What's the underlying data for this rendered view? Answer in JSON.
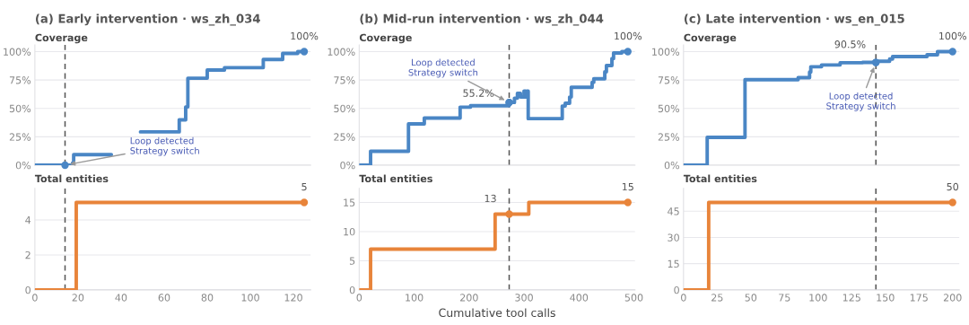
{
  "chart_data": [
    {
      "type": "step",
      "title": "(a) Early intervention · ws_zh_034",
      "subtitle": "Coverage",
      "x": [
        0,
        14,
        17.5,
        18,
        35.5,
        49,
        67,
        70,
        71,
        80,
        88,
        106,
        115,
        122,
        125
      ],
      "series": [
        {
          "color": "#4a86c5",
          "values": [
            0,
            0,
            2,
            9.3,
            null,
            29.3,
            39.9,
            51.3,
            76.6,
            83.8,
            85.9,
            93.1,
            98.4,
            100,
            100
          ]
        }
      ],
      "xlim": [
        0,
        128
      ],
      "ylim": [
        0,
        106
      ],
      "yticks": [
        {
          "value": 0,
          "label": "0%"
        },
        {
          "value": 25,
          "label": "25%"
        },
        {
          "value": 50,
          "label": "50%"
        },
        {
          "value": 75,
          "label": "75%"
        },
        {
          "value": 100,
          "label": "100%"
        }
      ],
      "tick_labels": "y",
      "grid": "y",
      "ref_lines": [
        {
          "axis": "x",
          "value": 14,
          "color": "#555555",
          "line_style": "dashed"
        }
      ],
      "annotations": [
        {
          "text": "100%",
          "x": 125,
          "y": 100
        },
        {
          "text": "Loop detected\nStrategy switch",
          "x": 14,
          "y": 0
        }
      ]
    },
    {
      "type": "step",
      "title": "(b) Mid-run intervention · ws_zh_044",
      "subtitle": "Coverage",
      "x": [
        0,
        20.7,
        89.7,
        118.5,
        183.7,
        202.7,
        273,
        282.6,
        288,
        293.5,
        300,
        303,
        305,
        307.6,
        369.6,
        375,
        383,
        386,
        424,
        427,
        447,
        450,
        460,
        463,
        478,
        489
      ],
      "series": [
        {
          "color": "#4a86c5",
          "values": [
            0,
            12.2,
            36.4,
            41.5,
            51.1,
            52.4,
            55.2,
            59.0,
            63.3,
            60.0,
            65.2,
            60.0,
            65.2,
            41.0,
            52.1,
            54.5,
            60.0,
            68.6,
            73.0,
            76.1,
            82.2,
            87.8,
            93.9,
            98.9,
            100,
            100
          ]
        }
      ],
      "xlim": [
        0,
        502
      ],
      "ylim": [
        0,
        106
      ],
      "yticks": [
        {
          "value": 0,
          "label": "0%"
        },
        {
          "value": 25,
          "label": "25%"
        },
        {
          "value": 50,
          "label": "50%"
        },
        {
          "value": 75,
          "label": "75%"
        },
        {
          "value": 100,
          "label": "100%"
        }
      ],
      "tick_labels": "y",
      "grid": "y",
      "ref_lines": [
        {
          "axis": "x",
          "value": 273,
          "color": "#555555",
          "line_style": "dashed"
        }
      ],
      "annotations": [
        {
          "text": "100%",
          "x": 489,
          "y": 100
        },
        {
          "text": "55.2%",
          "x": 273,
          "y": 55.2
        },
        {
          "text": "Loop detected\nStrategy switch",
          "x": 273,
          "y": 55.2
        }
      ]
    },
    {
      "type": "step",
      "title": "(c) Late intervention · ws_en_015",
      "subtitle": "Coverage",
      "x": [
        0,
        17.6,
        45.7,
        85.2,
        93.7,
        94.6,
        102.6,
        116.4,
        133.1,
        143,
        153.2,
        155.4,
        181,
        188.8,
        200
      ],
      "series": [
        {
          "color": "#4a86c5",
          "values": [
            0,
            24.5,
            75.3,
            77.1,
            82.0,
            86.7,
            88.3,
            90.2,
            90.5,
            91.5,
            93.5,
            95.7,
            97.3,
            100,
            100
          ]
        }
      ],
      "xlim": [
        0,
        205
      ],
      "ylim": [
        0,
        106
      ],
      "yticks": [
        {
          "value": 0,
          "label": "0%"
        },
        {
          "value": 25,
          "label": "25%"
        },
        {
          "value": 50,
          "label": "50%"
        },
        {
          "value": 75,
          "label": "75%"
        },
        {
          "value": 100,
          "label": "100%"
        }
      ],
      "tick_labels": "y",
      "grid": "y",
      "ref_lines": [
        {
          "axis": "x",
          "value": 143,
          "color": "#555555",
          "line_style": "dashed"
        }
      ],
      "annotations": [
        {
          "text": "100%",
          "x": 200,
          "y": 100
        },
        {
          "text": "90.5%",
          "x": 143,
          "y": 90.5
        },
        {
          "text": "Loop detected\nStrategy switch",
          "x": 143,
          "y": 90.5
        }
      ]
    },
    {
      "type": "step",
      "title": "Total entities",
      "x": [
        0,
        19.2,
        125
      ],
      "series": [
        {
          "color": "#e8843a",
          "values": [
            0,
            5,
            5
          ]
        }
      ],
      "xlim": [
        0,
        128
      ],
      "xticks": [
        0,
        20,
        40,
        60,
        80,
        100,
        120
      ],
      "ylim": [
        0,
        5.8
      ],
      "yticks": [
        0,
        2,
        4
      ],
      "grid": "y",
      "ref_lines": [
        {
          "axis": "x",
          "value": 14,
          "color": "#555555",
          "line_style": "dashed"
        }
      ],
      "annotations": [
        {
          "text": "5",
          "x": 125,
          "y": 5
        }
      ]
    },
    {
      "type": "step",
      "title": "Total entities",
      "xlabel": "Cumulative tool calls",
      "x": [
        0,
        20.7,
        247.4,
        308.7,
        489
      ],
      "series": [
        {
          "color": "#e8843a",
          "values": [
            0,
            7,
            13,
            15,
            15
          ]
        }
      ],
      "xlim": [
        0,
        502
      ],
      "xticks": [
        0,
        100,
        200,
        300,
        400,
        500
      ],
      "ylim": [
        0,
        17.4
      ],
      "yticks": [
        0,
        5,
        10,
        15
      ],
      "grid": "y",
      "ref_lines": [
        {
          "axis": "x",
          "value": 273,
          "color": "#555555",
          "line_style": "dashed"
        }
      ],
      "annotations": [
        {
          "text": "13",
          "x": 273,
          "y": 13
        },
        {
          "text": "15",
          "x": 489,
          "y": 15
        }
      ]
    },
    {
      "type": "step",
      "title": "Total entities",
      "x": [
        0,
        18.7,
        200
      ],
      "series": [
        {
          "color": "#e8843a",
          "values": [
            0,
            50,
            50
          ]
        }
      ],
      "xlim": [
        0,
        205
      ],
      "xticks": [
        0,
        25,
        50,
        75,
        100,
        125,
        150,
        175,
        200
      ],
      "ylim": [
        0,
        58
      ],
      "yticks": [
        0,
        15,
        30,
        45
      ],
      "grid": "y",
      "ref_lines": [
        {
          "axis": "x",
          "value": 143,
          "color": "#555555",
          "line_style": "dashed"
        }
      ],
      "annotations": [
        {
          "text": "50",
          "x": 200,
          "y": 50
        }
      ]
    }
  ]
}
